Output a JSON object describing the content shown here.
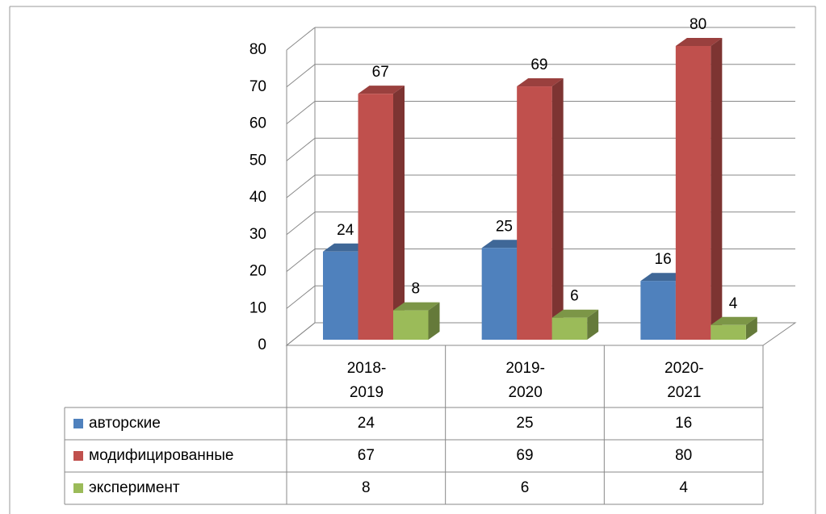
{
  "chart_data": {
    "type": "bar3d",
    "categories": [
      "2018-\n2019",
      "2019-\n2020",
      "2020-\n2021"
    ],
    "series": [
      {
        "name": "авторские",
        "color": "#4f81bd",
        "values": [
          24,
          25,
          16
        ]
      },
      {
        "name": "модифицированные",
        "color": "#c0504d",
        "values": [
          67,
          69,
          80
        ]
      },
      {
        "name": "эксперимент",
        "color": "#9bbb59",
        "values": [
          8,
          6,
          4
        ]
      }
    ],
    "ylim": [
      0,
      80
    ],
    "yticks": [
      0,
      10,
      20,
      30,
      40,
      50,
      60,
      70,
      80
    ],
    "grid": true,
    "data_table": true
  }
}
